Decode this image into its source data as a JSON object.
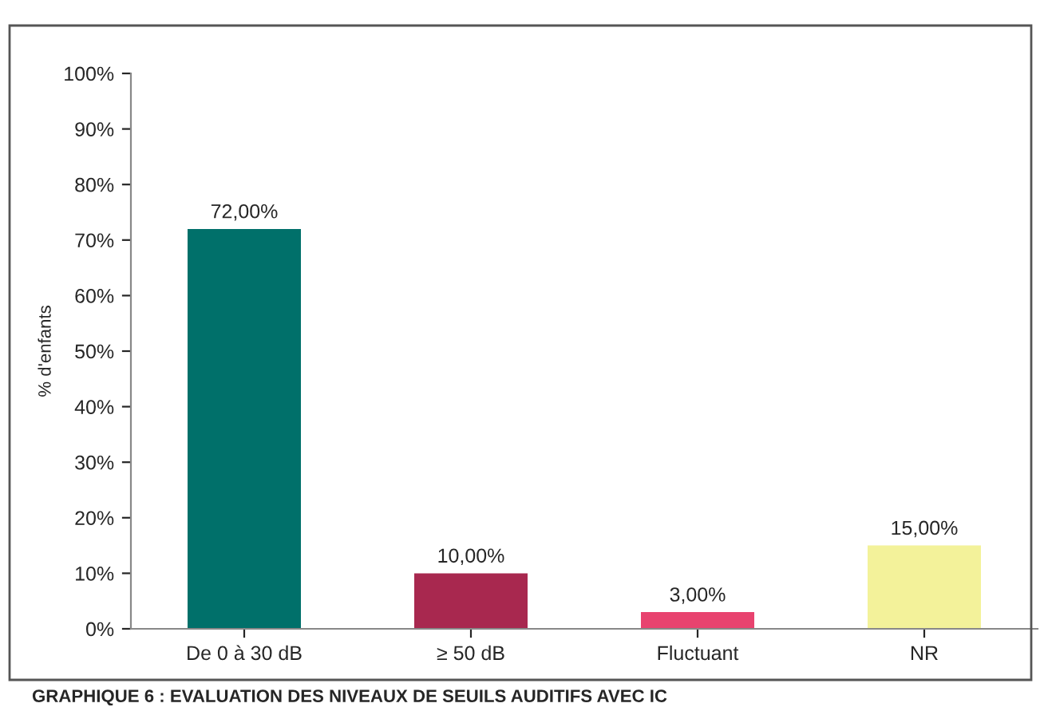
{
  "chart_data": {
    "type": "bar",
    "categories": [
      "De 0 à 30 dB",
      "≥ 50 dB",
      "Fluctuant",
      "NR"
    ],
    "values": [
      72,
      10,
      3,
      15
    ],
    "colors": [
      "#00706a",
      "#a8284f",
      "#e8436f",
      "#f3f29a"
    ],
    "value_labels": [
      "72,00%",
      "10,00%",
      "3,00%",
      "15,00%"
    ],
    "ylabel": "% d'enfants",
    "ylim": [
      0,
      100
    ],
    "yticks": [
      {
        "value": 0,
        "label": "0%"
      },
      {
        "value": 10,
        "label": "10%"
      },
      {
        "value": 20,
        "label": "20%"
      },
      {
        "value": 30,
        "label": "30%"
      },
      {
        "value": 40,
        "label": "40%"
      },
      {
        "value": 50,
        "label": "50%"
      },
      {
        "value": 60,
        "label": "60%"
      },
      {
        "value": 70,
        "label": "70%"
      },
      {
        "value": 80,
        "label": "80%"
      },
      {
        "value": 90,
        "label": "90%"
      },
      {
        "value": 100,
        "label": "100%"
      }
    ],
    "grid": false,
    "legend": false,
    "annotations": [
      "GRAPHIQUE 6 : EVALUATION DES NIVEAUX DE SEUILS AUDITIFS AVEC IC"
    ]
  }
}
